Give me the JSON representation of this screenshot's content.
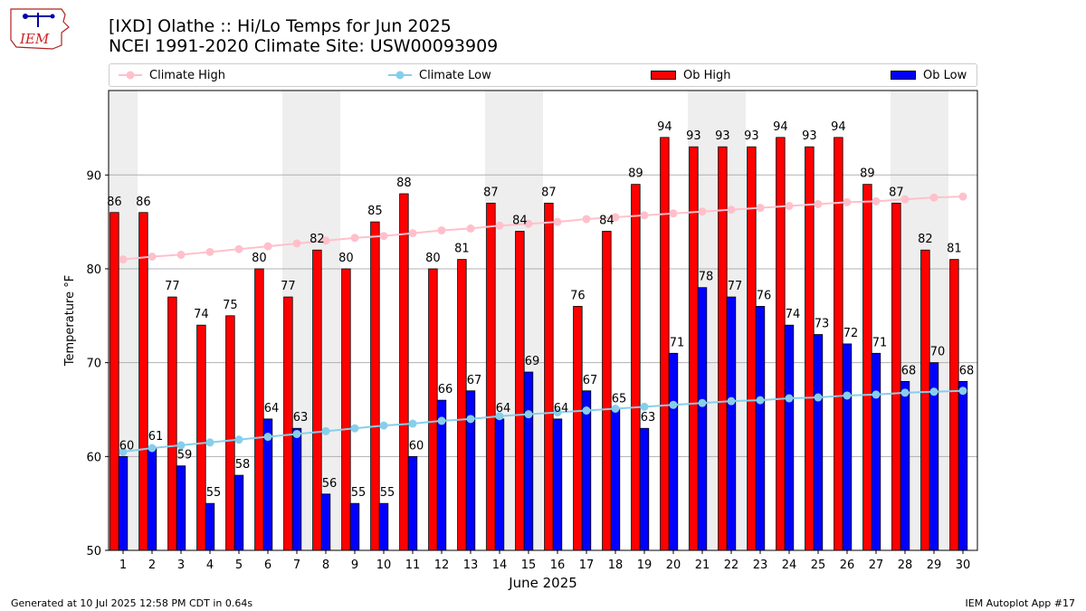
{
  "header": {
    "title_line1": "[IXD] Olathe :: Hi/Lo Temps for Jun 2025",
    "title_line2": "NCEI 1991-2020 Climate Site: USW00093909",
    "logo_text": "IEM"
  },
  "legend": {
    "climate_high": "Climate High",
    "climate_low": "Climate Low",
    "ob_high": "Ob High",
    "ob_low": "Ob Low"
  },
  "footer": {
    "generated": "Generated at 10 Jul 2025 12:58 PM CDT in 0.64s",
    "app": "IEM Autoplot App #17"
  },
  "colors": {
    "ob_high": "#ff0000",
    "ob_low": "#0000ff",
    "climate_high": "#ffc0cb",
    "climate_low": "#87ceeb",
    "weekend_band": "#eeeeee"
  },
  "chart_data": {
    "type": "bar",
    "title": "[IXD] Olathe :: Hi/Lo Temps for Jun 2025",
    "xlabel": "June 2025",
    "ylabel": "Temperature °F",
    "ylim": [
      50,
      99
    ],
    "yticks": [
      50,
      60,
      70,
      80,
      90
    ],
    "grid": "horizontal",
    "categories": [
      "1",
      "2",
      "3",
      "4",
      "5",
      "6",
      "7",
      "8",
      "9",
      "10",
      "11",
      "12",
      "13",
      "14",
      "15",
      "16",
      "17",
      "18",
      "19",
      "20",
      "21",
      "22",
      "23",
      "24",
      "25",
      "26",
      "27",
      "28",
      "29",
      "30"
    ],
    "shaded_days": [
      1,
      7,
      8,
      14,
      15,
      21,
      22,
      28,
      29
    ],
    "series": [
      {
        "name": "Ob High",
        "kind": "bar",
        "values": [
          86,
          86,
          77,
          74,
          75,
          80,
          77,
          82,
          80,
          85,
          88,
          80,
          81,
          87,
          84,
          87,
          76,
          84,
          89,
          94,
          93,
          93,
          93,
          94,
          93,
          94,
          89,
          87,
          82,
          81
        ]
      },
      {
        "name": "Ob Low",
        "kind": "bar",
        "values": [
          60,
          61,
          59,
          55,
          58,
          64,
          63,
          56,
          55,
          55,
          60,
          66,
          67,
          64,
          69,
          64,
          67,
          65,
          63,
          71,
          78,
          77,
          76,
          74,
          73,
          72,
          71,
          68,
          70,
          68
        ]
      },
      {
        "name": "Climate High",
        "kind": "line",
        "values": [
          81.0,
          81.3,
          81.5,
          81.8,
          82.1,
          82.4,
          82.7,
          83.0,
          83.3,
          83.5,
          83.8,
          84.1,
          84.3,
          84.6,
          84.8,
          85.0,
          85.3,
          85.5,
          85.7,
          85.9,
          86.1,
          86.3,
          86.5,
          86.7,
          86.9,
          87.1,
          87.2,
          87.4,
          87.6,
          87.7
        ]
      },
      {
        "name": "Climate Low",
        "kind": "line",
        "values": [
          60.5,
          60.9,
          61.2,
          61.5,
          61.8,
          62.1,
          62.4,
          62.7,
          63.0,
          63.3,
          63.5,
          63.8,
          64.0,
          64.3,
          64.5,
          64.7,
          64.9,
          65.1,
          65.3,
          65.5,
          65.7,
          65.9,
          66.0,
          66.2,
          66.3,
          66.5,
          66.6,
          66.8,
          66.9,
          67.0
        ]
      }
    ]
  }
}
